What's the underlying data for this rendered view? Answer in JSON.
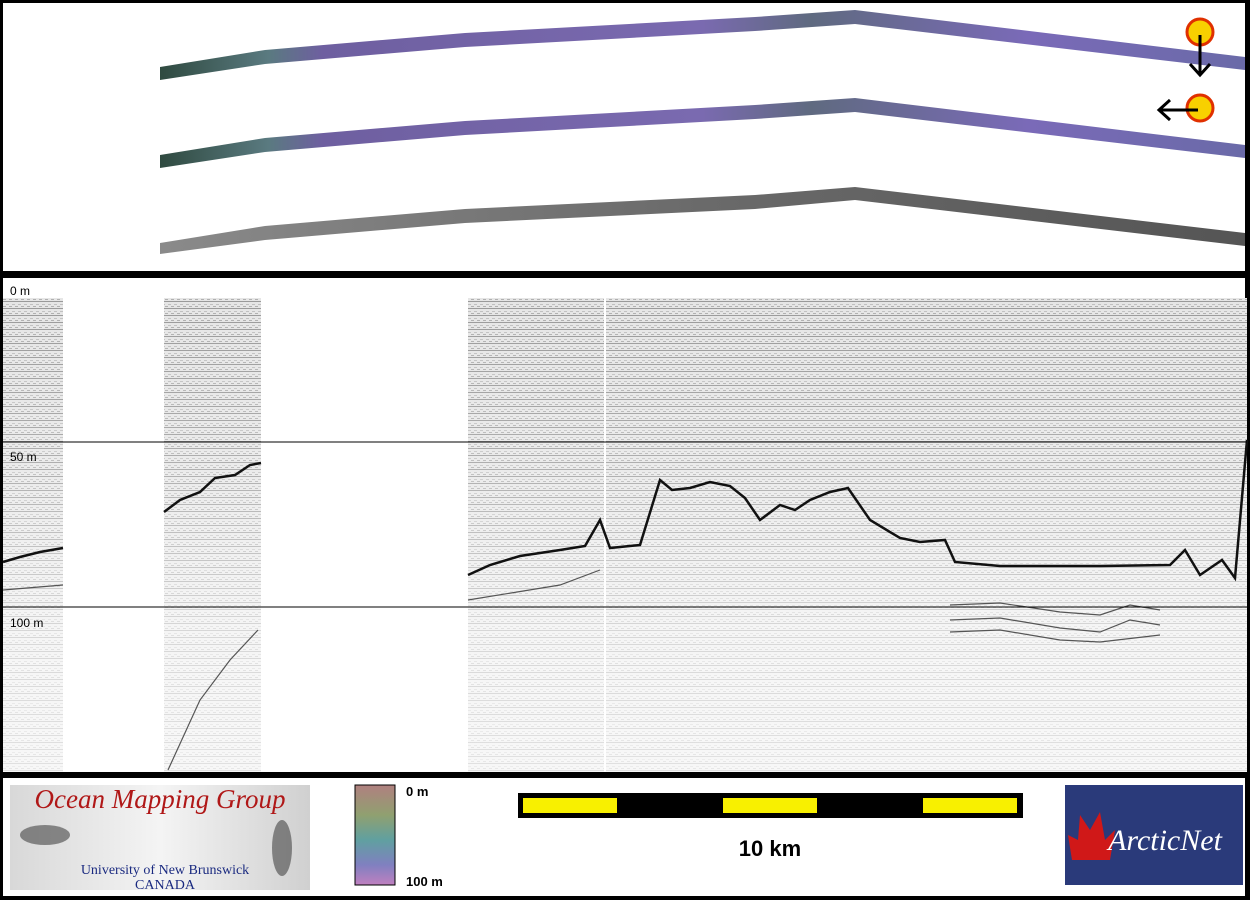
{
  "profile": {
    "depth_labels": [
      "0 m",
      "50 m",
      "100 m"
    ]
  },
  "footer": {
    "logo": {
      "title": "Ocean Mapping Group",
      "university": "University of New Brunswick",
      "country": "CANADA"
    },
    "color_scale": {
      "top": "0 m",
      "bottom": "100 m"
    },
    "scale_bar": {
      "label": "10 km"
    },
    "partner": "ArcticNet"
  }
}
